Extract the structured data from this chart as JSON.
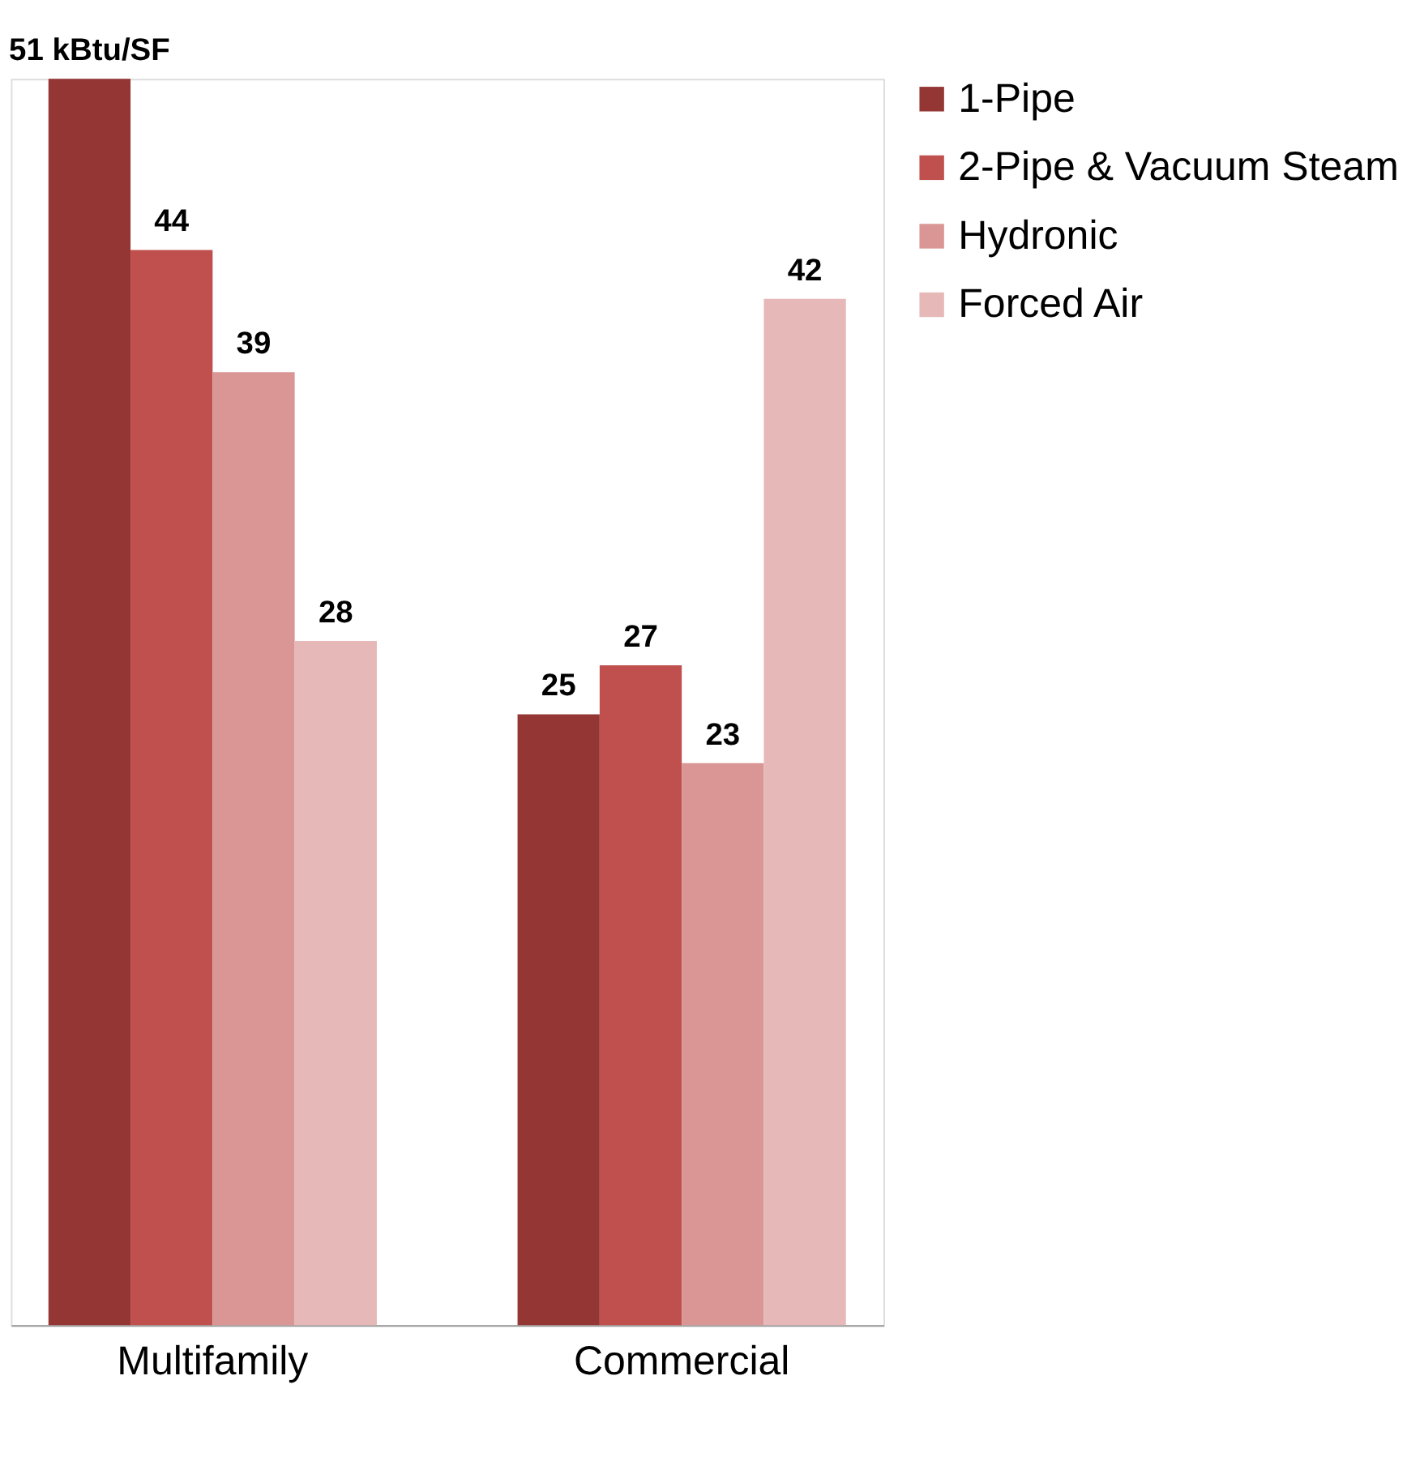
{
  "chart_data": {
    "type": "bar",
    "categories": [
      "Multifamily",
      "Commercial"
    ],
    "series": [
      {
        "name": "1-Pipe",
        "color": "#943634",
        "values": [
          51,
          25
        ],
        "value_labels": [
          "51 kBtu/SF",
          "25"
        ]
      },
      {
        "name": "2-Pipe & Vacuum Steam",
        "color": "#c0504d",
        "values": [
          44,
          27
        ],
        "value_labels": [
          "44",
          "27"
        ]
      },
      {
        "name": "Hydronic",
        "color": "#d99694",
        "values": [
          39,
          23
        ],
        "value_labels": [
          "39",
          "23"
        ]
      },
      {
        "name": "Forced Air",
        "color": "#e6b9b8",
        "values": [
          28,
          42
        ],
        "value_labels": [
          "28",
          "42"
        ]
      }
    ],
    "legend": "right",
    "grid": false
  }
}
